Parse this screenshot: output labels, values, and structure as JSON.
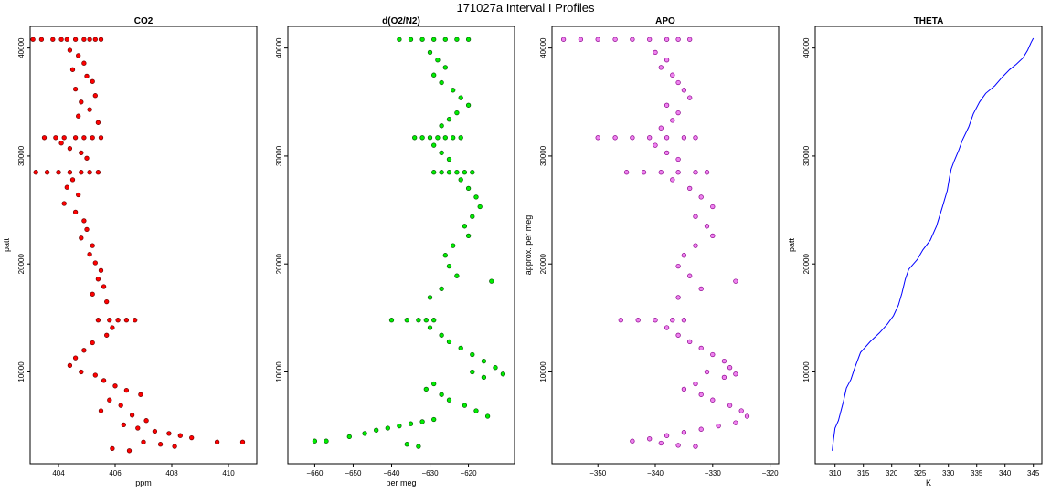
{
  "page": {
    "title": "171027a   Interval I Profiles"
  },
  "chart_data": [
    {
      "type": "scatter",
      "title": "CO2",
      "xlabel": "ppm",
      "ylabel": "patt",
      "xlim": [
        403.0,
        411.0
      ],
      "ylim": [
        1500,
        42000
      ],
      "xticks": [
        404,
        406,
        408,
        410
      ],
      "yticks": [
        10000,
        20000,
        30000,
        40000
      ],
      "color": "#ff0000",
      "outline": "#6a0000",
      "series": [
        {
          "x": [
            403.1,
            403.4,
            403.8,
            404.1,
            404.3,
            404.6,
            404.9,
            405.1,
            405.3,
            405.5
          ],
          "y": [
            40800,
            40800,
            40800,
            40800,
            40800,
            40800,
            40800,
            40800,
            40800,
            40800
          ]
        },
        {
          "x": [
            404.4,
            404.7,
            404.9,
            404.5,
            405.0,
            405.2,
            404.6,
            405.3,
            404.8,
            405.1,
            404.7,
            405.4
          ],
          "y": [
            39800,
            39300,
            38600,
            38000,
            37400,
            36900,
            36200,
            35600,
            35000,
            34300,
            33700,
            33100
          ]
        },
        {
          "x": [
            403.5,
            403.9,
            404.2,
            404.6,
            404.9,
            405.2,
            405.5,
            404.1,
            404.4,
            404.8,
            405.0
          ],
          "y": [
            31700,
            31700,
            31700,
            31700,
            31700,
            31700,
            31700,
            31200,
            30700,
            30300,
            29800
          ]
        },
        {
          "x": [
            403.2,
            403.6,
            404.0,
            404.4,
            404.8,
            405.1,
            405.4,
            404.5,
            404.3,
            404.7,
            404.2,
            404.6
          ],
          "y": [
            28500,
            28500,
            28500,
            28500,
            28500,
            28500,
            28500,
            27800,
            27100,
            26400,
            25600,
            24800
          ]
        },
        {
          "x": [
            404.9,
            405.0,
            404.8,
            405.2,
            405.1,
            405.3,
            405.5,
            405.4,
            405.6,
            405.2,
            405.7
          ],
          "y": [
            24000,
            23200,
            22400,
            21700,
            20900,
            20100,
            19400,
            18600,
            17900,
            17200,
            16500
          ]
        },
        {
          "x": [
            405.4,
            405.8,
            406.1,
            406.4,
            406.7,
            405.9,
            405.7,
            405.2,
            404.9,
            404.6,
            404.4,
            404.8
          ],
          "y": [
            14800,
            14800,
            14800,
            14800,
            14800,
            14100,
            13400,
            12700,
            12000,
            11300,
            10600,
            10000
          ]
        },
        {
          "x": [
            405.3,
            405.6,
            406.0,
            406.4,
            406.9,
            405.8,
            406.2,
            405.5,
            406.6,
            407.1
          ],
          "y": [
            9700,
            9200,
            8700,
            8300,
            7900,
            7400,
            6900,
            6400,
            6000,
            5500
          ]
        },
        {
          "x": [
            406.3,
            406.8,
            407.4,
            407.9,
            408.3,
            408.7,
            407.0,
            407.6,
            408.1,
            409.6,
            410.5,
            405.9,
            406.5
          ],
          "y": [
            5100,
            4800,
            4500,
            4300,
            4100,
            3900,
            3500,
            3300,
            3100,
            3500,
            3500,
            2900,
            2700
          ]
        }
      ]
    },
    {
      "type": "scatter",
      "title": "d(O2/N2)",
      "xlabel": "per meg",
      "ylabel": "",
      "xlim": [
        -667.0,
        -608.0
      ],
      "ylim": [
        1500,
        42000
      ],
      "xticks": [
        -660,
        -650,
        -640,
        -630,
        -620
      ],
      "yticks": [
        10000,
        20000,
        30000,
        40000
      ],
      "color": "#00ee00",
      "outline": "#005a00",
      "series": [
        {
          "x": [
            -638,
            -635,
            -632,
            -629,
            -626,
            -623,
            -620
          ],
          "y": [
            40800,
            40800,
            40800,
            40800,
            40800,
            40800,
            40800
          ]
        },
        {
          "x": [
            -630,
            -628,
            -626,
            -629,
            -627,
            -624,
            -622,
            -620,
            -623,
            -625,
            -627
          ],
          "y": [
            39600,
            38900,
            38200,
            37500,
            36800,
            36100,
            35400,
            34700,
            34000,
            33400,
            32800
          ]
        },
        {
          "x": [
            -634,
            -632,
            -630,
            -628,
            -626,
            -624,
            -622,
            -629,
            -627,
            -625
          ],
          "y": [
            31700,
            31700,
            31700,
            31700,
            31700,
            31700,
            31700,
            31000,
            30300,
            29700
          ]
        },
        {
          "x": [
            -629,
            -627,
            -625,
            -623,
            -621,
            -619,
            -622,
            -620,
            -618,
            -617,
            -619,
            -621
          ],
          "y": [
            28500,
            28500,
            28500,
            28500,
            28500,
            28500,
            27800,
            27000,
            26200,
            25300,
            24400,
            23500
          ]
        },
        {
          "x": [
            -620,
            -624,
            -626,
            -625,
            -623,
            -614,
            -627,
            -630
          ],
          "y": [
            22600,
            21700,
            20800,
            19800,
            18900,
            18400,
            17700,
            16900
          ]
        },
        {
          "x": [
            -640,
            -636,
            -633,
            -631,
            -629,
            -630,
            -627,
            -625,
            -622,
            -619,
            -616,
            -613,
            -611
          ],
          "y": [
            14800,
            14800,
            14800,
            14800,
            14800,
            14100,
            13400,
            12800,
            12200,
            11600,
            11000,
            10400,
            9800
          ]
        },
        {
          "x": [
            -619,
            -616,
            -629,
            -631,
            -627,
            -625,
            -621,
            -618,
            -615
          ],
          "y": [
            10000,
            9500,
            8900,
            8400,
            7900,
            7400,
            6900,
            6400,
            5900
          ]
        },
        {
          "x": [
            -660,
            -657,
            -651,
            -647,
            -644,
            -641,
            -638,
            -635,
            -632,
            -629,
            -636,
            -633
          ],
          "y": [
            3600,
            3600,
            4000,
            4300,
            4600,
            4800,
            5000,
            5200,
            5400,
            5600,
            3300,
            3100
          ]
        }
      ]
    },
    {
      "type": "scatter",
      "title": "APO",
      "xlabel": "",
      "ylabel": "approx. per meg",
      "xlim": [
        -358.0,
        -318.5
      ],
      "ylim": [
        1500,
        42000
      ],
      "xticks": [
        -350,
        -340,
        -330,
        -320
      ],
      "yticks": [
        10000,
        20000,
        30000,
        40000
      ],
      "color": "#ee82ee",
      "outline": "#8b008b",
      "series": [
        {
          "x": [
            -356,
            -353,
            -350,
            -347,
            -344,
            -341,
            -338,
            -336,
            -334
          ],
          "y": [
            40800,
            40800,
            40800,
            40800,
            40800,
            40800,
            40800,
            40800,
            40800
          ]
        },
        {
          "x": [
            -340,
            -338,
            -339,
            -337,
            -336,
            -335,
            -334,
            -338,
            -336,
            -337,
            -339
          ],
          "y": [
            39600,
            38900,
            38200,
            37500,
            36800,
            36100,
            35400,
            34700,
            34000,
            33300,
            32600
          ]
        },
        {
          "x": [
            -350,
            -347,
            -344,
            -341,
            -338,
            -335,
            -333,
            -340,
            -338,
            -336
          ],
          "y": [
            31700,
            31700,
            31700,
            31700,
            31700,
            31700,
            31700,
            31000,
            30300,
            29700
          ]
        },
        {
          "x": [
            -345,
            -342,
            -339,
            -336,
            -333,
            -331,
            -337,
            -334,
            -332,
            -330,
            -333,
            -331
          ],
          "y": [
            28500,
            28500,
            28500,
            28500,
            28500,
            28500,
            27800,
            27000,
            26200,
            25300,
            24400,
            23500
          ]
        },
        {
          "x": [
            -330,
            -333,
            -335,
            -336,
            -334,
            -326,
            -332,
            -336
          ],
          "y": [
            22600,
            21700,
            20800,
            19800,
            18900,
            18400,
            17700,
            16900
          ]
        },
        {
          "x": [
            -346,
            -343,
            -340,
            -337,
            -335,
            -338,
            -336,
            -334,
            -332,
            -330,
            -328,
            -327,
            -326
          ],
          "y": [
            14800,
            14800,
            14800,
            14800,
            14800,
            14100,
            13400,
            12800,
            12200,
            11600,
            11000,
            10400,
            9800
          ]
        },
        {
          "x": [
            -331,
            -328,
            -333,
            -335,
            -332,
            -330,
            -327,
            -325,
            -324
          ],
          "y": [
            10000,
            9500,
            8900,
            8400,
            7900,
            7400,
            6900,
            6400,
            5900
          ]
        },
        {
          "x": [
            -344,
            -341,
            -338,
            -335,
            -332,
            -329,
            -326,
            -339,
            -336,
            -333
          ],
          "y": [
            3600,
            3800,
            4100,
            4400,
            4700,
            5000,
            5300,
            3400,
            3200,
            3100
          ]
        }
      ]
    },
    {
      "type": "line",
      "title": "THETA",
      "xlabel": "K",
      "ylabel": "patt",
      "xlim": [
        306.5,
        346.5
      ],
      "ylim": [
        1500,
        42000
      ],
      "xticks": [
        310,
        315,
        320,
        325,
        330,
        335,
        340,
        345
      ],
      "yticks": [
        10000,
        20000,
        30000,
        40000
      ],
      "color": "#0000ff",
      "series": [
        {
          "name": "",
          "x": [
            309.5,
            309.7,
            310.0,
            310.6,
            311.0,
            311.5,
            312.0,
            312.8,
            313.5,
            314.5,
            316.2,
            317.8,
            319.2,
            320.3,
            321.2,
            321.8,
            322.4,
            323.0,
            324.5,
            325.5,
            326.8,
            327.9,
            328.9,
            329.8,
            330.2,
            330.5,
            331.0,
            331.8,
            332.5,
            333.6,
            334.4,
            335.5,
            336.6,
            338.2,
            339.5,
            340.8,
            342.0,
            343.2,
            344.0,
            344.6,
            345.0
          ],
          "y": [
            2700,
            3600,
            4800,
            5500,
            6300,
            7300,
            8500,
            9300,
            10400,
            11800,
            12800,
            13600,
            14400,
            15200,
            16200,
            17300,
            18600,
            19500,
            20400,
            21300,
            22200,
            23500,
            25200,
            26800,
            28000,
            28800,
            29500,
            30500,
            31500,
            32700,
            33900,
            35000,
            35800,
            36500,
            37300,
            38000,
            38500,
            39100,
            39800,
            40500,
            40900
          ]
        }
      ]
    }
  ]
}
